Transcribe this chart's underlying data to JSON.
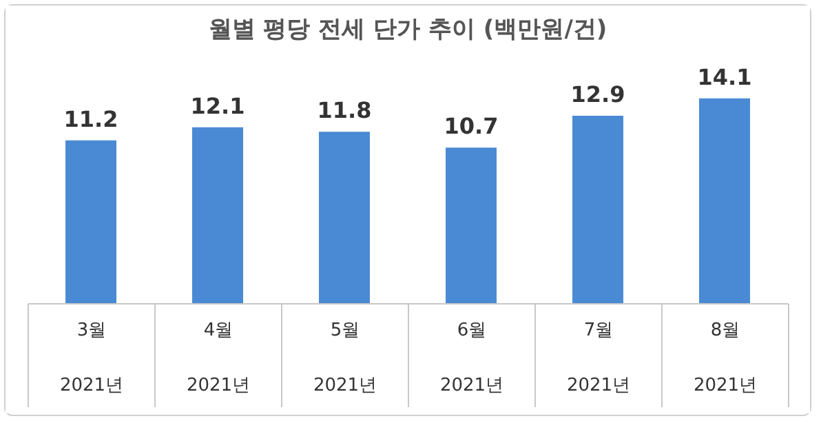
{
  "chart_data": {
    "type": "bar",
    "title": "월별 평당 전세 단가 추이 (백만원/건)",
    "categories": [
      "3월\n2021년",
      "4월\n2021년",
      "5월\n2021년",
      "6월\n2021년",
      "7월\n2021년",
      "8월\n2021년"
    ],
    "values": [
      11.2,
      12.1,
      11.8,
      10.7,
      12.9,
      14.1
    ],
    "color": "#4a8ad4",
    "data_labels": true,
    "tick_labels": "x"
  }
}
